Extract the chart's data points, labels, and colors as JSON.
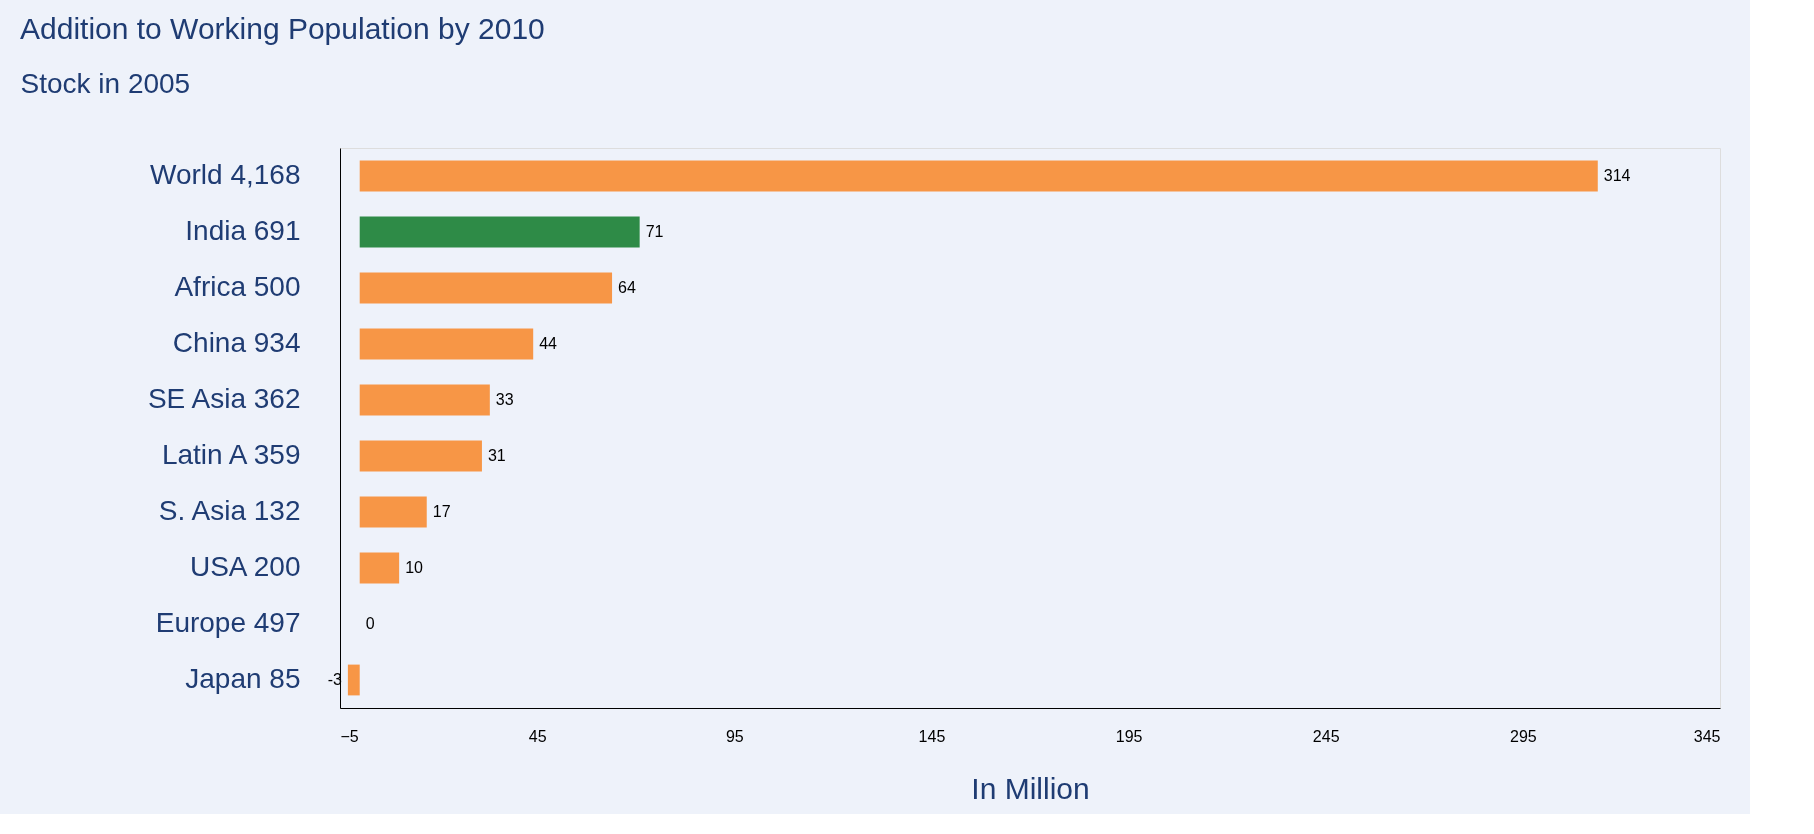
{
  "chart_data": {
    "type": "bar",
    "orientation": "horizontal",
    "title": "Addition to Working Population by 2010",
    "ylabel": "Stock in 2005",
    "xlabel": "In Million",
    "categories": [
      "World   4,168",
      "India      691",
      "Africa     500",
      "China      934",
      "SE Asia    362",
      "Latin A     359",
      "S. Asia       132",
      "USA           200",
      "Europe      497",
      "Japan         85"
    ],
    "values": [
      314,
      71,
      64,
      44,
      33,
      31,
      17,
      10,
      0,
      -3
    ],
    "colors": [
      "#f79646",
      "#2e8b47",
      "#f79646",
      "#f79646",
      "#f79646",
      "#f79646",
      "#f79646",
      "#f79646",
      "#f79646",
      "#f79646"
    ],
    "xlim": [
      -5,
      345
    ],
    "xticks": [
      -5,
      45,
      95,
      145,
      195,
      245,
      295,
      345
    ],
    "data_labels": true,
    "grid": false
  }
}
